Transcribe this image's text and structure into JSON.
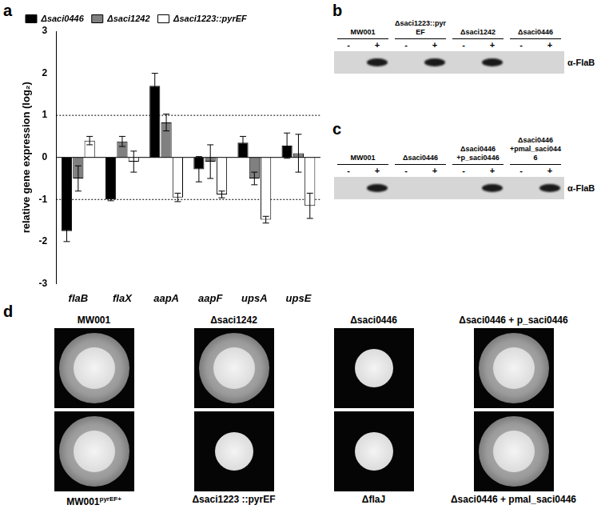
{
  "chart_data": {
    "panel": "a",
    "type": "bar",
    "categories": [
      "flaB",
      "flaX",
      "aapA",
      "aapF",
      "upsA",
      "upsE"
    ],
    "series": [
      {
        "name": "Δsaci0446",
        "color": "#000000",
        "values": [
          -1.75,
          -1.0,
          1.7,
          -0.28,
          0.35,
          0.28
        ],
        "errors": [
          0.25,
          0.03,
          0.3,
          0.3,
          0.15,
          0.3
        ]
      },
      {
        "name": "Δsaci1242",
        "color": "#808080",
        "values": [
          -0.5,
          0.38,
          0.83,
          -0.1,
          -0.5,
          0.1
        ],
        "errors": [
          0.3,
          0.12,
          0.2,
          0.4,
          0.15,
          0.45
        ]
      },
      {
        "name": "Δsaci1223::pyrEF",
        "color": "#ffffff",
        "values": [
          0.4,
          -0.1,
          -0.95,
          -0.88,
          -1.48,
          -1.15
        ],
        "errors": [
          0.1,
          0.25,
          0.1,
          0.08,
          0.08,
          0.3
        ]
      }
    ],
    "ylabel": "relative gene expression (log₂)",
    "ylim": [
      -3,
      3
    ],
    "yticks": [
      -3,
      -2,
      -1,
      0,
      1,
      2,
      3
    ],
    "threshold_lines": [
      -1,
      1
    ],
    "grid": false,
    "legend": "top-left"
  },
  "blots": [
    {
      "panel": "b",
      "antibody": "α-FlaB",
      "groups": [
        {
          "label": "MW001",
          "lanes": [
            {
              "label": "-",
              "band": false
            },
            {
              "label": "+",
              "band": true
            }
          ]
        },
        {
          "label": "Δsaci1223::pyrEF",
          "lanes": [
            {
              "label": "-",
              "band": false
            },
            {
              "label": "+",
              "band": true
            }
          ]
        },
        {
          "label": "Δsaci1242",
          "lanes": [
            {
              "label": "-",
              "band": false
            },
            {
              "label": "+",
              "band": true
            }
          ]
        },
        {
          "label": "Δsaci0446",
          "lanes": [
            {
              "label": "-",
              "band": false
            },
            {
              "label": "+",
              "band": false
            }
          ]
        }
      ]
    },
    {
      "panel": "c",
      "antibody": "α-FlaB",
      "groups": [
        {
          "label": "MW001",
          "lanes": [
            {
              "label": "-",
              "band": false
            },
            {
              "label": "+",
              "band": true
            }
          ]
        },
        {
          "label": "Δsaci0446",
          "lanes": [
            {
              "label": "-",
              "band": false
            },
            {
              "label": "+",
              "band": false
            }
          ]
        },
        {
          "label": "Δsaci0446 +p_saci0446",
          "lanes": [
            {
              "label": "-",
              "band": false
            },
            {
              "label": "+",
              "band": true
            }
          ]
        },
        {
          "label": "Δsaci0446 +pmal_saci0446",
          "lanes": [
            {
              "label": "-",
              "band": false
            },
            {
              "label": "+",
              "band": true
            }
          ]
        }
      ]
    }
  ],
  "motility": {
    "panel": "d",
    "rows": [
      [
        {
          "label": "MW001",
          "motile": true
        },
        {
          "label": "Δsaci1242",
          "motile": true
        },
        {
          "label": "Δsaci0446",
          "motile": false
        },
        {
          "label": "Δsaci0446 + p_saci0446",
          "motile": true
        }
      ],
      [
        {
          "label": "MW001",
          "superscript": "pyrEF+",
          "motile": true
        },
        {
          "label": "Δsaci1223 ::pyrEF",
          "motile": false
        },
        {
          "label": "ΔflaJ",
          "motile": false
        },
        {
          "label": "Δsaci0446 + pmal_saci0446",
          "motile": true
        }
      ]
    ]
  }
}
